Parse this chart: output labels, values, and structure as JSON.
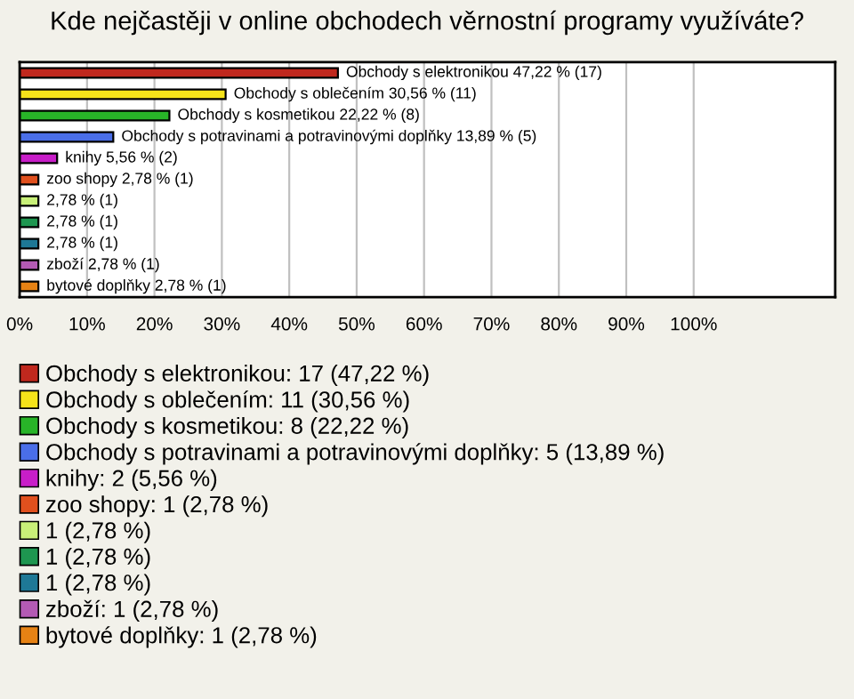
{
  "chart_data": {
    "type": "bar",
    "orientation": "horizontal",
    "title": "Kde nejčastěji v online obchodech věrnostní programy využíváte?",
    "categories": [
      null,
      null,
      null,
      null,
      null,
      null,
      null,
      null,
      null,
      null,
      null
    ],
    "series": [
      {
        "name": "Obchody s elektronikou: 17 (47,22 %)",
        "color": "#c0281e",
        "values": [
          47.22,
          null,
          null,
          null,
          null,
          null,
          null,
          null,
          null,
          null,
          null
        ],
        "value_labels": [
          "Obchody s elektronikou 47,22 % (17)",
          null,
          null,
          null,
          null,
          null,
          null,
          null,
          null,
          null,
          null
        ]
      },
      {
        "name": "Obchody s oblečením: 11 (30,56 %)",
        "color": "#f5e31a",
        "values": [
          null,
          30.56,
          null,
          null,
          null,
          null,
          null,
          null,
          null,
          null,
          null
        ],
        "value_labels": [
          null,
          "Obchody s oblečením 30,56 % (11)",
          null,
          null,
          null,
          null,
          null,
          null,
          null,
          null,
          null
        ]
      },
      {
        "name": "Obchody s kosmetikou: 8 (22,22 %)",
        "color": "#28b428",
        "values": [
          null,
          null,
          22.22,
          null,
          null,
          null,
          null,
          null,
          null,
          null,
          null
        ],
        "value_labels": [
          null,
          null,
          "Obchody s kosmetikou 22,22 % (8)",
          null,
          null,
          null,
          null,
          null,
          null,
          null,
          null
        ]
      },
      {
        "name": "Obchody s potravinami a potravinovými doplňky: 5 (13,89 %)",
        "color": "#4a6ee8",
        "values": [
          null,
          null,
          null,
          13.89,
          null,
          null,
          null,
          null,
          null,
          null,
          null
        ],
        "value_labels": [
          null,
          null,
          null,
          "Obchody s potravinami a potravinovými doplňky 13,89 % (5)",
          null,
          null,
          null,
          null,
          null,
          null,
          null
        ]
      },
      {
        "name": "knihy: 2 (5,56 %)",
        "color": "#c81ec8",
        "values": [
          null,
          null,
          null,
          null,
          5.56,
          null,
          null,
          null,
          null,
          null,
          null
        ],
        "value_labels": [
          null,
          null,
          null,
          null,
          "knihy 5,56 % (2)",
          null,
          null,
          null,
          null,
          null,
          null
        ]
      },
      {
        "name": "zoo shopy: 1 (2,78 %)",
        "color": "#e0501e",
        "values": [
          null,
          null,
          null,
          null,
          null,
          2.78,
          null,
          null,
          null,
          null,
          null
        ],
        "value_labels": [
          null,
          null,
          null,
          null,
          null,
          "zoo shopy 2,78 % (1)",
          null,
          null,
          null,
          null,
          null
        ]
      },
      {
        "name": "1 (2,78 %)",
        "color": "#c8f078",
        "values": [
          null,
          null,
          null,
          null,
          null,
          null,
          2.78,
          null,
          null,
          null,
          null
        ],
        "value_labels": [
          null,
          null,
          null,
          null,
          null,
          null,
          "2,78 % (1)",
          null,
          null,
          null,
          null
        ]
      },
      {
        "name": "1 (2,78 %)",
        "color": "#1e9650",
        "values": [
          null,
          null,
          null,
          null,
          null,
          null,
          null,
          2.78,
          null,
          null,
          null
        ],
        "value_labels": [
          null,
          null,
          null,
          null,
          null,
          null,
          null,
          "2,78 % (1)",
          null,
          null,
          null
        ]
      },
      {
        "name": "1 (2,78 %)",
        "color": "#1e7896",
        "values": [
          null,
          null,
          null,
          null,
          null,
          null,
          null,
          null,
          2.78,
          null,
          null
        ],
        "value_labels": [
          null,
          null,
          null,
          null,
          null,
          null,
          null,
          null,
          "2,78 % (1)",
          null,
          null
        ]
      },
      {
        "name": "zboží: 1 (2,78 %)",
        "color": "#b45ab4",
        "values": [
          null,
          null,
          null,
          null,
          null,
          null,
          null,
          null,
          null,
          2.78,
          null
        ],
        "value_labels": [
          null,
          null,
          null,
          null,
          null,
          null,
          null,
          null,
          null,
          "zboží 2,78 % (1)",
          null
        ]
      },
      {
        "name": "bytové doplňky: 1 (2,78 %)",
        "color": "#e68214",
        "values": [
          null,
          null,
          null,
          null,
          null,
          null,
          null,
          null,
          null,
          null,
          2.78
        ],
        "value_labels": [
          null,
          null,
          null,
          null,
          null,
          null,
          null,
          null,
          null,
          null,
          "bytové doplňky 2,78 % (1)"
        ]
      }
    ],
    "xlim": [
      0,
      121
    ],
    "xticks": [
      {
        "value": 0,
        "label": "0%"
      },
      {
        "value": 10,
        "label": "10%"
      },
      {
        "value": 20,
        "label": "20%"
      },
      {
        "value": 30,
        "label": "30%"
      },
      {
        "value": 40,
        "label": "40%"
      },
      {
        "value": 50,
        "label": "50%"
      },
      {
        "value": 60,
        "label": "60%"
      },
      {
        "value": 70,
        "label": "70%"
      },
      {
        "value": 80,
        "label": "80%"
      },
      {
        "value": 90,
        "label": "90%"
      },
      {
        "value": 100,
        "label": "100%"
      }
    ],
    "grid": "x",
    "legend": "bottom"
  }
}
